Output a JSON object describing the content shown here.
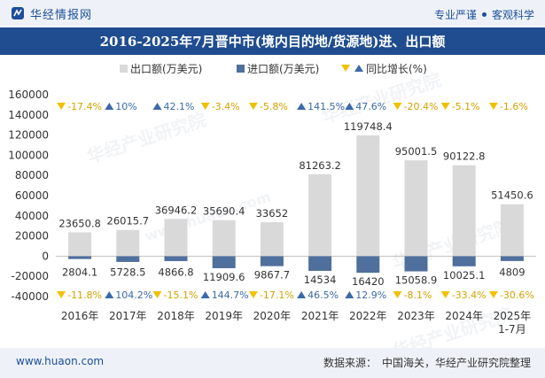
{
  "header": {
    "brand": "华经情报网",
    "slogan_left": "专业严谨",
    "slogan_right": "客观科学"
  },
  "title": "2016-2025年7月晋中市(境内目的地/货源地)进、出口额",
  "legend": {
    "export": "出口额(万美元)",
    "import": "进口额(万美元)",
    "growth": "同比增长(%)"
  },
  "colors": {
    "export": "#d9d9d9",
    "import": "#4f6f9c",
    "up": "#3a6aa8",
    "down": "#f2c000",
    "title_bg": "#1f4d8f"
  },
  "chart_data": {
    "type": "bar",
    "categories": [
      "2016年",
      "2017年",
      "2018年",
      "2019年",
      "2020年",
      "2021年",
      "2022年",
      "2023年",
      "2024年",
      "2025年\n1-7月"
    ],
    "series": [
      {
        "name": "出口额(万美元)",
        "values": [
          23650.8,
          26015.7,
          36946.2,
          35690.4,
          33652,
          81263.2,
          119748.4,
          95001.5,
          90122.8,
          51450.6
        ],
        "labels": [
          "23650.8",
          "26015.7",
          "36946.2",
          "35690.4",
          "33652",
          "81263.2",
          "119748.4",
          "95001.5",
          "90122.8",
          "51450.6"
        ]
      },
      {
        "name": "进口额(万美元)",
        "values": [
          -2804.1,
          -5728.5,
          -4866.8,
          -11909.6,
          -9867.7,
          -14534,
          -16420,
          -15058.9,
          -10025.1,
          -4809
        ],
        "labels": [
          "2804.1",
          "5728.5",
          "4866.8",
          "11909.6",
          "9867.7",
          "14534",
          "16420",
          "15058.9",
          "10025.1",
          "4809"
        ]
      }
    ],
    "export_growth": [
      -17.4,
      10,
      42.1,
      -3.4,
      -5.8,
      141.5,
      47.6,
      -20.4,
      -5.1,
      -1.6
    ],
    "export_growth_labels": [
      "-17.4%",
      "10%",
      "42.1%",
      "-3.4%",
      "-5.8%",
      "141.5%",
      "47.6%",
      "-20.4%",
      "-5.1%",
      "-1.6%"
    ],
    "import_growth": [
      -11.8,
      104.2,
      -15.1,
      144.7,
      -17.1,
      46.5,
      12.9,
      -8.1,
      -33.4,
      -30.6
    ],
    "import_growth_labels": [
      "-11.8%",
      "104.2%",
      "-15.1%",
      "144.7%",
      "-17.1%",
      "46.5%",
      "12.9%",
      "-8.1%",
      "-33.4%",
      "-30.6%"
    ],
    "yticks": [
      "160000",
      "140000",
      "120000",
      "100000",
      "80000",
      "60000",
      "40000",
      "20000",
      "0",
      "-20000",
      "-40000"
    ],
    "ylim": [
      -40000,
      160000
    ]
  },
  "watermark": "华经产业研究院",
  "watermark_url": "www.huaon.com",
  "footer": {
    "site": "www.huaon.com",
    "source_label": "数据来源：",
    "source": "中国海关，华经产业研究院整理"
  }
}
